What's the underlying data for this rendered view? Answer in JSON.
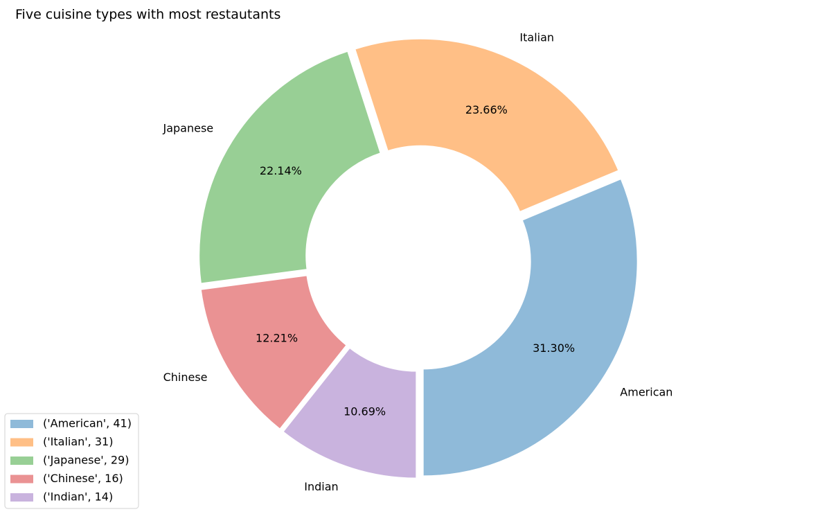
{
  "chart_data": {
    "type": "pie",
    "style": "donut",
    "title": "Five cuisine types with most restautants",
    "categories": [
      "American",
      "Italian",
      "Japanese",
      "Chinese",
      "Indian"
    ],
    "values": [
      41,
      31,
      29,
      16,
      14
    ],
    "percent_labels": [
      "31.30%",
      "23.66%",
      "22.14%",
      "12.21%",
      "10.69%"
    ],
    "colors": [
      "#8fbad9",
      "#ffbf86",
      "#98cf95",
      "#ea9293",
      "#c9b3de"
    ],
    "legend": {
      "placement": "lower-left",
      "entries": [
        "('American', 41)",
        "('Italian', 31)",
        "('Japanese', 29)",
        "('Chinese', 16)",
        "('Indian', 14)"
      ]
    }
  }
}
